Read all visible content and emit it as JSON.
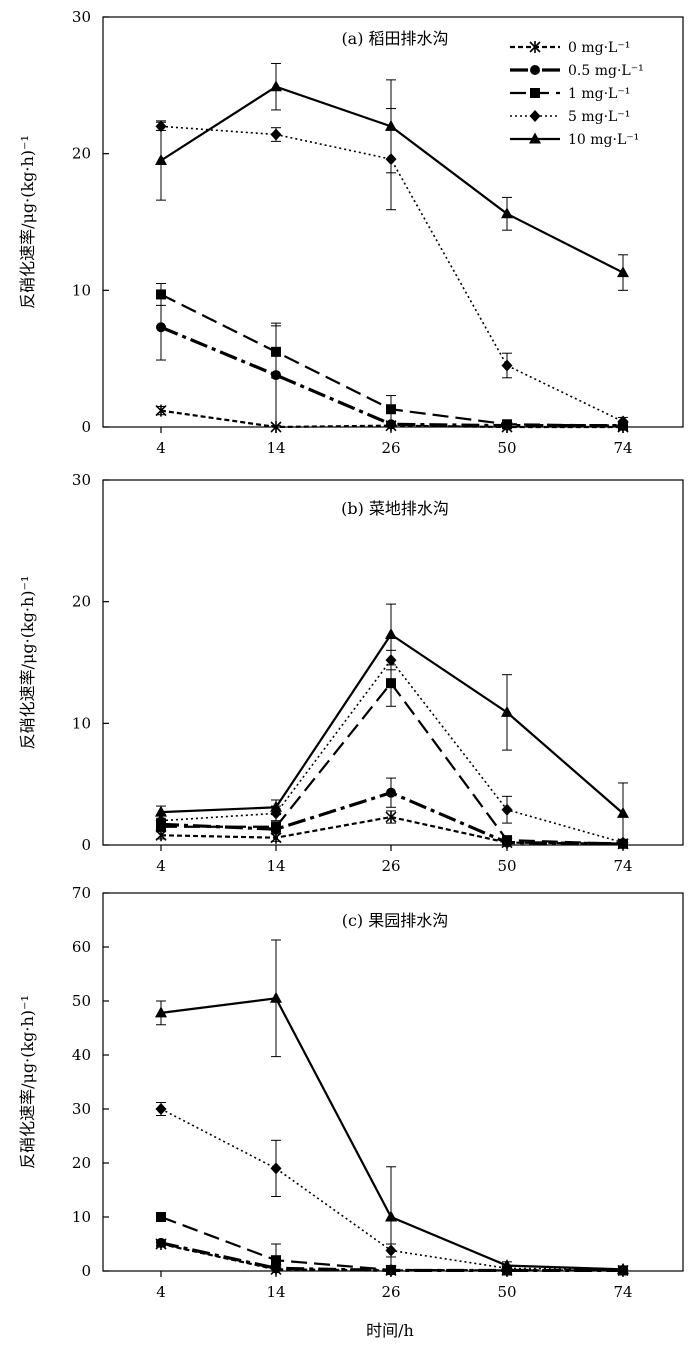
{
  "figure": {
    "xlabel": "时间/h"
  },
  "legend": {
    "entries": [
      "0 mg·L⁻¹",
      "0.5 mg·L⁻¹",
      "1 mg·L⁻¹",
      "5 mg·L⁻¹",
      "10 mg·L⁻¹"
    ],
    "placement": "top-right of panel (a)"
  },
  "chart_data": [
    {
      "type": "line",
      "title": "(a) 稻田排水沟",
      "ylabel": "反硝化速率/μg·(kg·h)⁻¹",
      "categories": [
        "4",
        "14",
        "26",
        "50",
        "74"
      ],
      "ylim": [
        0,
        30
      ],
      "yticks": [
        0,
        10,
        20,
        30
      ],
      "series": [
        {
          "name": "0 mg·L⁻¹",
          "values": [
            1.2,
            0.0,
            0.1,
            0.0,
            0.0
          ],
          "errors": [
            0.3,
            0.1,
            0.1,
            0.1,
            0.1
          ]
        },
        {
          "name": "0.5 mg·L⁻¹",
          "values": [
            7.3,
            3.8,
            0.2,
            0.1,
            0.1
          ],
          "errors": [
            2.4,
            3.8,
            0.2,
            0.1,
            0.1
          ]
        },
        {
          "name": "1 mg·L⁻¹",
          "values": [
            9.7,
            5.5,
            1.3,
            0.2,
            0.1
          ],
          "errors": [
            0.8,
            1.9,
            1.0,
            0.2,
            0.2
          ]
        },
        {
          "name": "5 mg·L⁻¹",
          "values": [
            22.0,
            21.4,
            19.6,
            4.5,
            0.4
          ],
          "errors": [
            0.3,
            0.5,
            3.7,
            0.9,
            0.3
          ]
        },
        {
          "name": "10 mg·L⁻¹",
          "values": [
            19.5,
            24.9,
            22.0,
            15.6,
            11.3
          ],
          "errors": [
            2.9,
            1.7,
            3.4,
            1.2,
            1.3
          ]
        }
      ]
    },
    {
      "type": "line",
      "title": "(b) 菜地排水沟",
      "ylabel": "反硝化速率/μg·(kg·h)⁻¹",
      "categories": [
        "4",
        "14",
        "26",
        "50",
        "74"
      ],
      "ylim": [
        0,
        30
      ],
      "yticks": [
        0,
        10,
        20,
        30
      ],
      "series": [
        {
          "name": "0 mg·L⁻¹",
          "values": [
            0.8,
            0.6,
            2.3,
            0.2,
            0.1
          ],
          "errors": [
            0.3,
            0.3,
            0.5,
            0.1,
            0.1
          ]
        },
        {
          "name": "0.5 mg·L⁻¹",
          "values": [
            1.7,
            1.3,
            4.3,
            0.2,
            0.1
          ],
          "errors": [
            0.4,
            0.3,
            1.2,
            0.1,
            0.1
          ]
        },
        {
          "name": "1 mg·L⁻¹",
          "values": [
            1.5,
            1.5,
            13.3,
            0.4,
            0.1
          ],
          "errors": [
            0.4,
            0.4,
            1.9,
            0.2,
            0.1
          ]
        },
        {
          "name": "5 mg·L⁻¹",
          "values": [
            2.0,
            2.6,
            15.2,
            2.9,
            0.2
          ],
          "errors": [
            0.5,
            0.6,
            0.8,
            1.1,
            0.2
          ]
        },
        {
          "name": "10 mg·L⁻¹",
          "values": [
            2.7,
            3.1,
            17.3,
            10.9,
            2.6
          ],
          "errors": [
            0.5,
            0.6,
            2.5,
            3.1,
            2.5
          ]
        }
      ]
    },
    {
      "type": "line",
      "title": "(c) 果园排水沟",
      "ylabel": "反硝化速率/μg·(kg·h)⁻¹",
      "categories": [
        "4",
        "14",
        "26",
        "50",
        "74"
      ],
      "ylim": [
        0,
        70
      ],
      "yticks": [
        0,
        10,
        20,
        30,
        40,
        50,
        60,
        70
      ],
      "series": [
        {
          "name": "0 mg·L⁻¹",
          "values": [
            5.0,
            0.3,
            0.1,
            0.1,
            0.1
          ],
          "errors": [
            0.5,
            0.3,
            0.1,
            0.1,
            0.1
          ]
        },
        {
          "name": "0.5 mg·L⁻¹",
          "values": [
            5.2,
            0.5,
            0.1,
            0.1,
            0.1
          ],
          "errors": [
            0.5,
            0.5,
            0.1,
            0.1,
            0.1
          ]
        },
        {
          "name": "1 mg·L⁻¹",
          "values": [
            10.0,
            2.0,
            0.2,
            0.1,
            0.1
          ],
          "errors": [
            0.5,
            3.0,
            0.3,
            0.1,
            0.1
          ]
        },
        {
          "name": "5 mg·L⁻¹",
          "values": [
            30.0,
            19.0,
            3.8,
            0.5,
            0.2
          ],
          "errors": [
            1.2,
            5.2,
            1.2,
            0.3,
            0.1
          ]
        },
        {
          "name": "10 mg·L⁻¹",
          "values": [
            47.8,
            50.5,
            10.0,
            1.0,
            0.3
          ],
          "errors": [
            2.2,
            10.8,
            9.3,
            0.7,
            0.2
          ]
        }
      ]
    }
  ]
}
